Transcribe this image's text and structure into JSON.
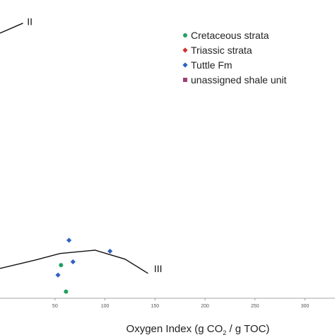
{
  "chart_data": {
    "type": "scatter",
    "xlabel": {
      "before": "Oxygen Index (g CO",
      "sub": "2",
      "after": " / g TOC)"
    },
    "xlim": [
      -5,
      330
    ],
    "ylim": [
      0,
      900
    ],
    "x_ticks": [
      "50",
      "100",
      "150",
      "200",
      "250",
      "300"
    ],
    "curves": [
      {
        "name": "II",
        "points": [
          [
            -5,
            800
          ],
          [
            18,
            830
          ]
        ],
        "label_at": [
          22,
          835
        ]
      },
      {
        "name": "III",
        "points": [
          [
            -5,
            90
          ],
          [
            30,
            115
          ],
          [
            55,
            135
          ],
          [
            90,
            145
          ],
          [
            120,
            118
          ],
          [
            143,
            75
          ]
        ],
        "label_at": [
          149,
          90
        ]
      }
    ],
    "legend_position": "top-right",
    "series": [
      {
        "name": "Cretaceous strata",
        "marker": "circle",
        "color": "#22a060",
        "points": [
          [
            56,
            100
          ],
          [
            61,
            20
          ]
        ]
      },
      {
        "name": "Triassic strata",
        "marker": "diamond",
        "color": "#d03030",
        "points": []
      },
      {
        "name": "Tuttle Fm",
        "marker": "diamond",
        "color": "#3060c0",
        "points": [
          [
            64,
            175
          ],
          [
            68,
            110
          ],
          [
            53,
            70
          ],
          [
            105,
            142
          ]
        ]
      },
      {
        "name": "unassigned shale unit",
        "marker": "square",
        "color": "#a0407a",
        "points": []
      }
    ]
  }
}
